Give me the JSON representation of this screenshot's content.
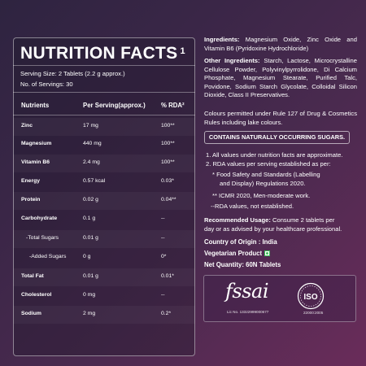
{
  "title": "NUTRITION FACTS",
  "title_sup": "1",
  "serving_size": "Serving Size: 2 Tablets (2.2 g approx.)",
  "servings": "No. of Servings: 30",
  "table": {
    "headers": [
      "Nutrients",
      "Per Serving(approx.)",
      "% RDA²"
    ],
    "rows": [
      {
        "name": "Zinc",
        "value": "17 mg",
        "rda": "100**"
      },
      {
        "name": "Magnesium",
        "value": "440 mg",
        "rda": "100**"
      },
      {
        "name": "Vitamin B6",
        "value": "2.4 mg",
        "rda": "100**"
      },
      {
        "name": "Energy",
        "value": "0.57 kcal",
        "rda": "0.03*"
      },
      {
        "name": "Protein",
        "value": "0.02 g",
        "rda": "0.04**"
      },
      {
        "name": "Carbohydrate",
        "value": "0.1 g",
        "rda": "--"
      },
      {
        "name": "-Total Sugars",
        "value": "0.01 g",
        "rda": "--"
      },
      {
        "name": "-Added Sugars",
        "value": "0 g",
        "rda": "0*"
      },
      {
        "name": "Total Fat",
        "value": "0.01 g",
        "rda": "0.01*"
      },
      {
        "name": "Cholesterol",
        "value": "0 mg",
        "rda": "--"
      },
      {
        "name": "Sodium",
        "value": "2 mg",
        "rda": "0.2*"
      }
    ]
  },
  "ingredients_label": "Ingredients:",
  "ingredients": "Magnesium Oxide, Zinc Oxide and Vitamin B6 (Pyridoxine Hydrochloride)",
  "other_label": "Other Ingredients:",
  "other": "Starch, Lactose, Microcrystalline Cellulose Powder, Polyvinylpyrrolidone, Di Calcium Phosphate, Magnesium Stearate, Purified Talc, Povidone, Sodium Starch Glycolate, Colloidal Silicon Dioxide, Class II Preservatives.",
  "colours": "Colours permitted under Rule 127 of Drug & Cosmetics Rules including lake colours.",
  "sugars_box": "CONTAINS NATURALLY OCCURRING SUGARS.",
  "notes": {
    "n1": "1. All values under nutrition facts are approximate.",
    "n2": "2. RDA values per serving established as per:",
    "n3a": "*  Food Safety and Standards (Labelling",
    "n3b": "and Display) Regulations 2020.",
    "n4": "** ICMR 2020, Men-moderate work.",
    "n5": "--RDA values, not established."
  },
  "usage_label": "Recommended Usage:",
  "usage_a": "Consume 2 tablets per",
  "usage_b": "day or as advised by your healthcare professional.",
  "origin": "Country of Origin : India",
  "veg": "Vegetarian Product",
  "net": "Net Quantity: 60N Tablets",
  "logos": {
    "fssai": "fssai",
    "lic": "Lic No. 13322999000677",
    "iso": "ISO",
    "iso_num": "22000:2005"
  }
}
